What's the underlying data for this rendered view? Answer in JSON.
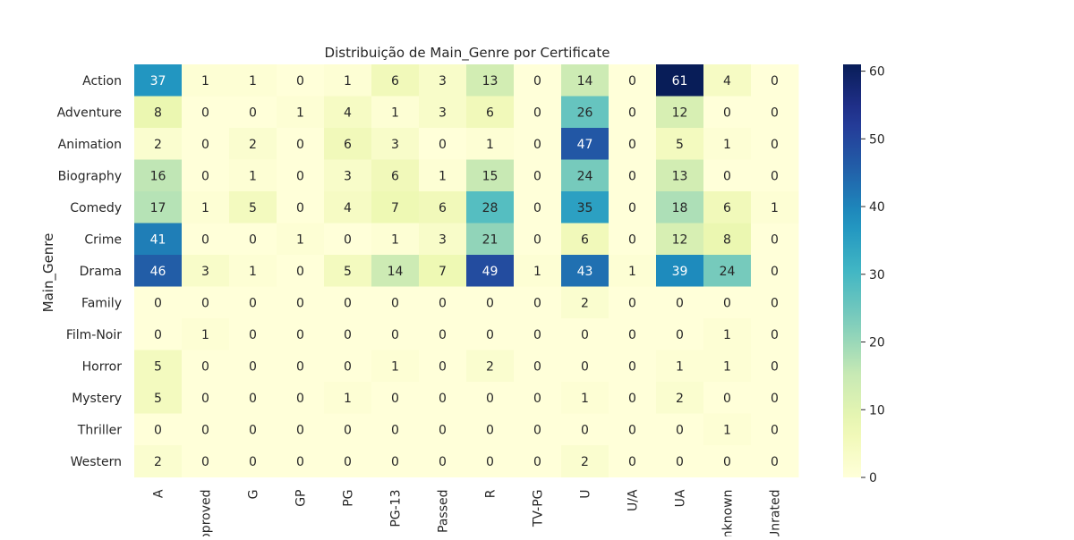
{
  "chart_data": {
    "type": "heatmap",
    "title": "Distribuição de Main_Genre por Certificate",
    "xlabel": "",
    "ylabel": "Main_Genre",
    "x_categories": [
      "A",
      "Approved",
      "G",
      "GP",
      "PG",
      "PG-13",
      "Passed",
      "R",
      "TV-PG",
      "U",
      "U/A",
      "UA",
      "Unknown",
      "Unrated"
    ],
    "y_categories": [
      "Action",
      "Adventure",
      "Animation",
      "Biography",
      "Comedy",
      "Crime",
      "Drama",
      "Family",
      "Film-Noir",
      "Horror",
      "Mystery",
      "Thriller",
      "Western"
    ],
    "values": [
      [
        37,
        1,
        1,
        0,
        1,
        6,
        3,
        13,
        0,
        14,
        0,
        61,
        4,
        0
      ],
      [
        8,
        0,
        0,
        1,
        4,
        1,
        3,
        6,
        0,
        26,
        0,
        12,
        0,
        0
      ],
      [
        2,
        0,
        2,
        0,
        6,
        3,
        0,
        1,
        0,
        47,
        0,
        5,
        1,
        0
      ],
      [
        16,
        0,
        1,
        0,
        3,
        6,
        1,
        15,
        0,
        24,
        0,
        13,
        0,
        0
      ],
      [
        17,
        1,
        5,
        0,
        4,
        7,
        6,
        28,
        0,
        35,
        0,
        18,
        6,
        1
      ],
      [
        41,
        0,
        0,
        1,
        0,
        1,
        3,
        21,
        0,
        6,
        0,
        12,
        8,
        0
      ],
      [
        46,
        3,
        1,
        0,
        5,
        14,
        7,
        49,
        1,
        43,
        1,
        39,
        24,
        0
      ],
      [
        0,
        0,
        0,
        0,
        0,
        0,
        0,
        0,
        0,
        2,
        0,
        0,
        0,
        0
      ],
      [
        0,
        1,
        0,
        0,
        0,
        0,
        0,
        0,
        0,
        0,
        0,
        0,
        1,
        0
      ],
      [
        5,
        0,
        0,
        0,
        0,
        1,
        0,
        2,
        0,
        0,
        0,
        1,
        1,
        0
      ],
      [
        5,
        0,
        0,
        0,
        1,
        0,
        0,
        0,
        0,
        1,
        0,
        2,
        0,
        0
      ],
      [
        0,
        0,
        0,
        0,
        0,
        0,
        0,
        0,
        0,
        0,
        0,
        0,
        1,
        0
      ],
      [
        2,
        0,
        0,
        0,
        0,
        0,
        0,
        0,
        0,
        2,
        0,
        0,
        0,
        0
      ]
    ],
    "colormap": "YlGnBu",
    "vmin": 0,
    "vmax": 61,
    "colorbar_ticks": [
      0,
      10,
      20,
      30,
      40,
      50,
      60
    ],
    "annotations": true,
    "grid": false
  }
}
